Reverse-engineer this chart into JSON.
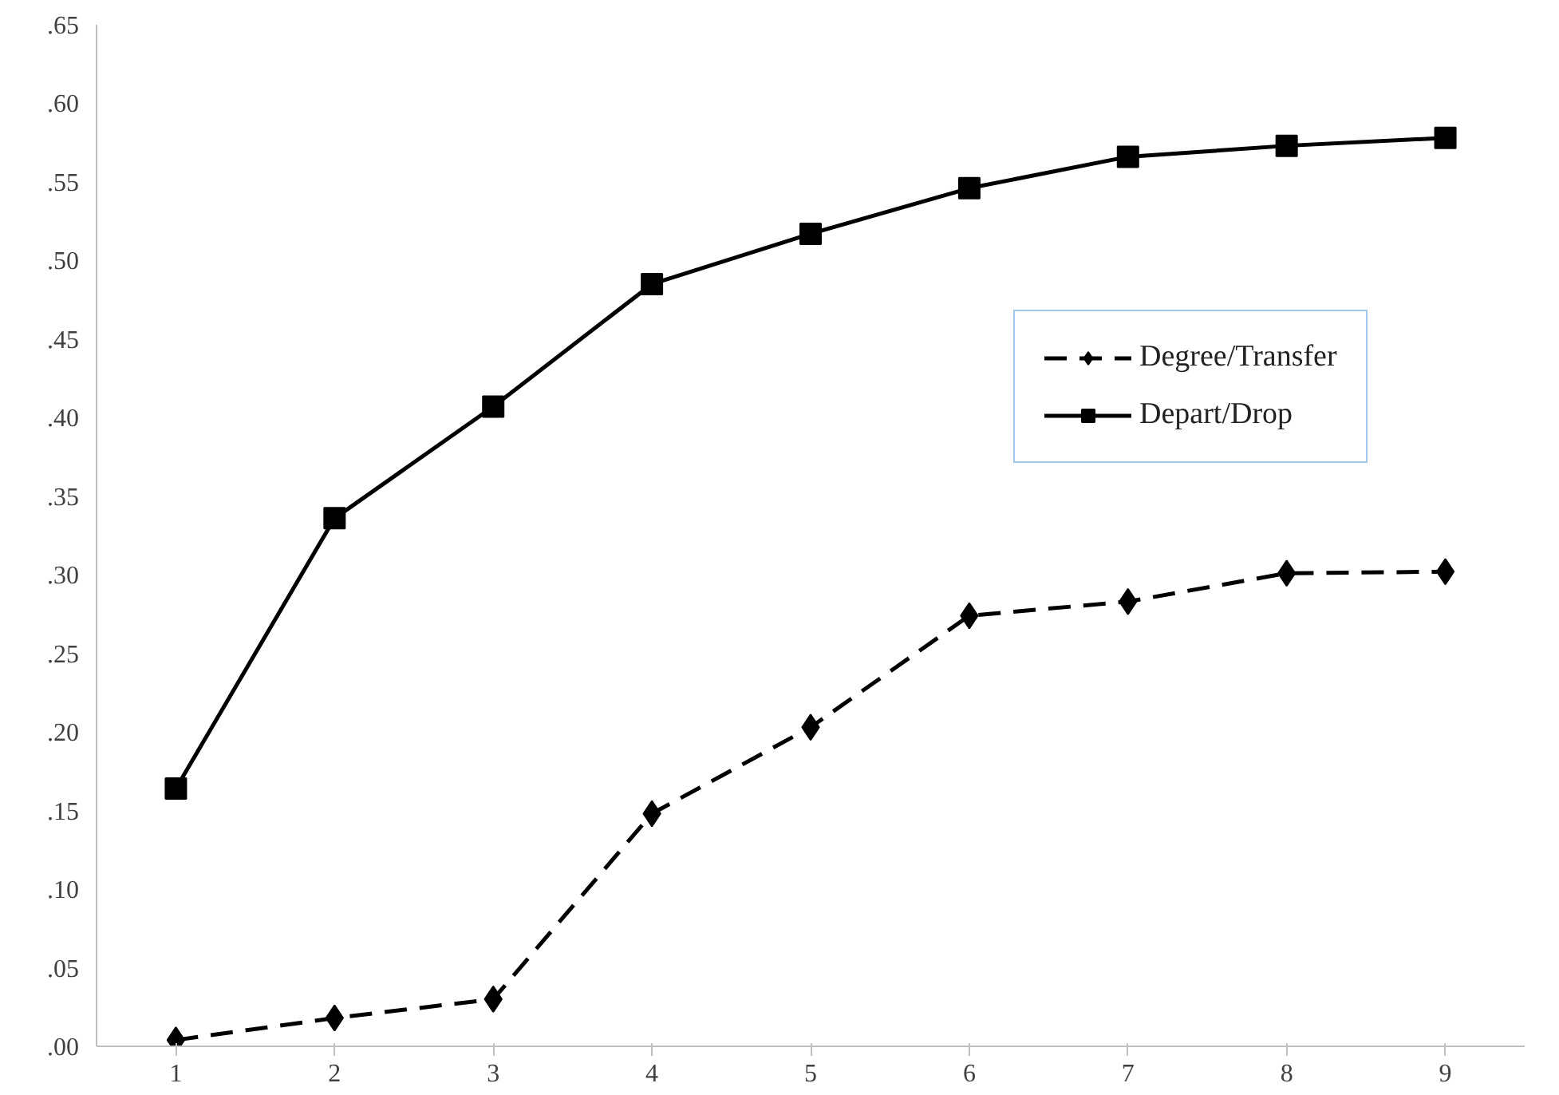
{
  "chart_data": {
    "type": "line",
    "categories": [
      "1",
      "2",
      "3",
      "4",
      "5",
      "6",
      "7",
      "8",
      "9"
    ],
    "series": [
      {
        "name": "Degree/Transfer",
        "color": "#000000",
        "marker": "diamond",
        "line_style": "dashed",
        "values": [
          0.004,
          0.018,
          0.03,
          0.148,
          0.203,
          0.274,
          0.283,
          0.301,
          0.302
        ]
      },
      {
        "name": "Depart/Drop",
        "color": "#000000",
        "marker": "square",
        "line_style": "solid",
        "values": [
          0.164,
          0.336,
          0.407,
          0.485,
          0.517,
          0.546,
          0.566,
          0.573,
          0.578
        ]
      }
    ],
    "ylim": [
      0,
      0.65
    ],
    "yticks": [
      {
        "value": 0,
        "label": ".00"
      },
      {
        "value": 0.05,
        "label": ".05"
      },
      {
        "value": 0.1,
        "label": ".10"
      },
      {
        "value": 0.15,
        "label": ".15"
      },
      {
        "value": 0.2,
        "label": ".20"
      },
      {
        "value": 0.25,
        "label": ".25"
      },
      {
        "value": 0.3,
        "label": ".30"
      },
      {
        "value": 0.35,
        "label": ".35"
      },
      {
        "value": 0.4,
        "label": ".40"
      },
      {
        "value": 0.45,
        "label": ".45"
      },
      {
        "value": 0.5,
        "label": ".50"
      },
      {
        "value": 0.55,
        "label": ".55"
      },
      {
        "value": 0.6,
        "label": ".60"
      },
      {
        "value": 0.65,
        "label": ".65"
      }
    ],
    "grid": false,
    "legend": "right"
  }
}
